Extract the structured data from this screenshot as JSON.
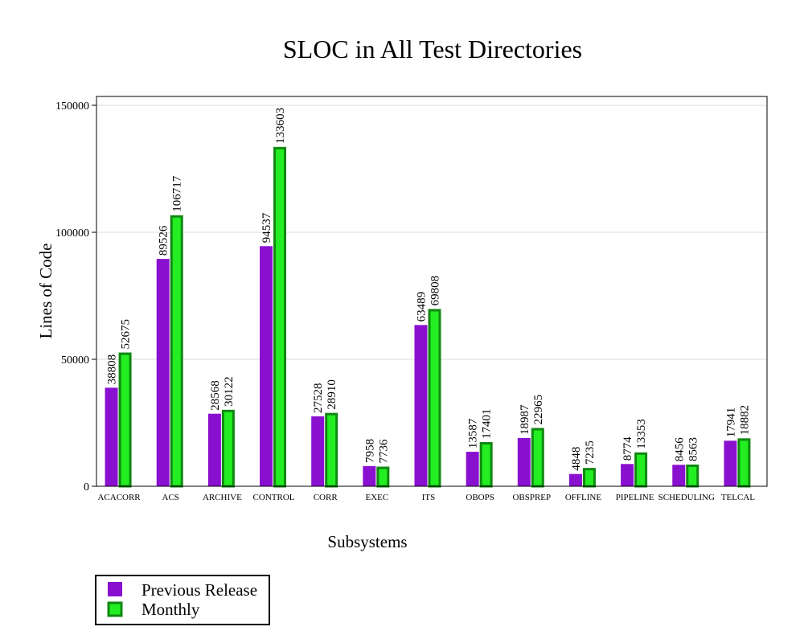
{
  "chart_data": {
    "type": "bar",
    "title": "SLOC in All Test Directories",
    "xlabel": "Subsystems",
    "ylabel": "Lines of Code",
    "ylim": [
      0,
      150000
    ],
    "yticks": [
      0,
      50000,
      100000,
      150000
    ],
    "grid": true,
    "legend_position": "bottom-left",
    "categories": [
      "ACACORR",
      "ACS",
      "ARCHIVE",
      "CONTROL",
      "CORR",
      "EXEC",
      "ITS",
      "OBOPS",
      "OBSPREP",
      "OFFLINE",
      "PIPELINE",
      "SCHEDULING",
      "TELCAL"
    ],
    "series": [
      {
        "name": "Previous Release",
        "color": "#8a10d0",
        "values": [
          38808,
          89526,
          28568,
          94537,
          27528,
          7958,
          63489,
          13587,
          18987,
          4848,
          8774,
          8456,
          17941
        ]
      },
      {
        "name": "Monthly",
        "color": "#22ee22",
        "edge_color": "#118811",
        "values": [
          52675,
          106717,
          30122,
          133603,
          28910,
          7736,
          69808,
          17401,
          22965,
          7235,
          13353,
          8563,
          18882
        ]
      }
    ]
  }
}
